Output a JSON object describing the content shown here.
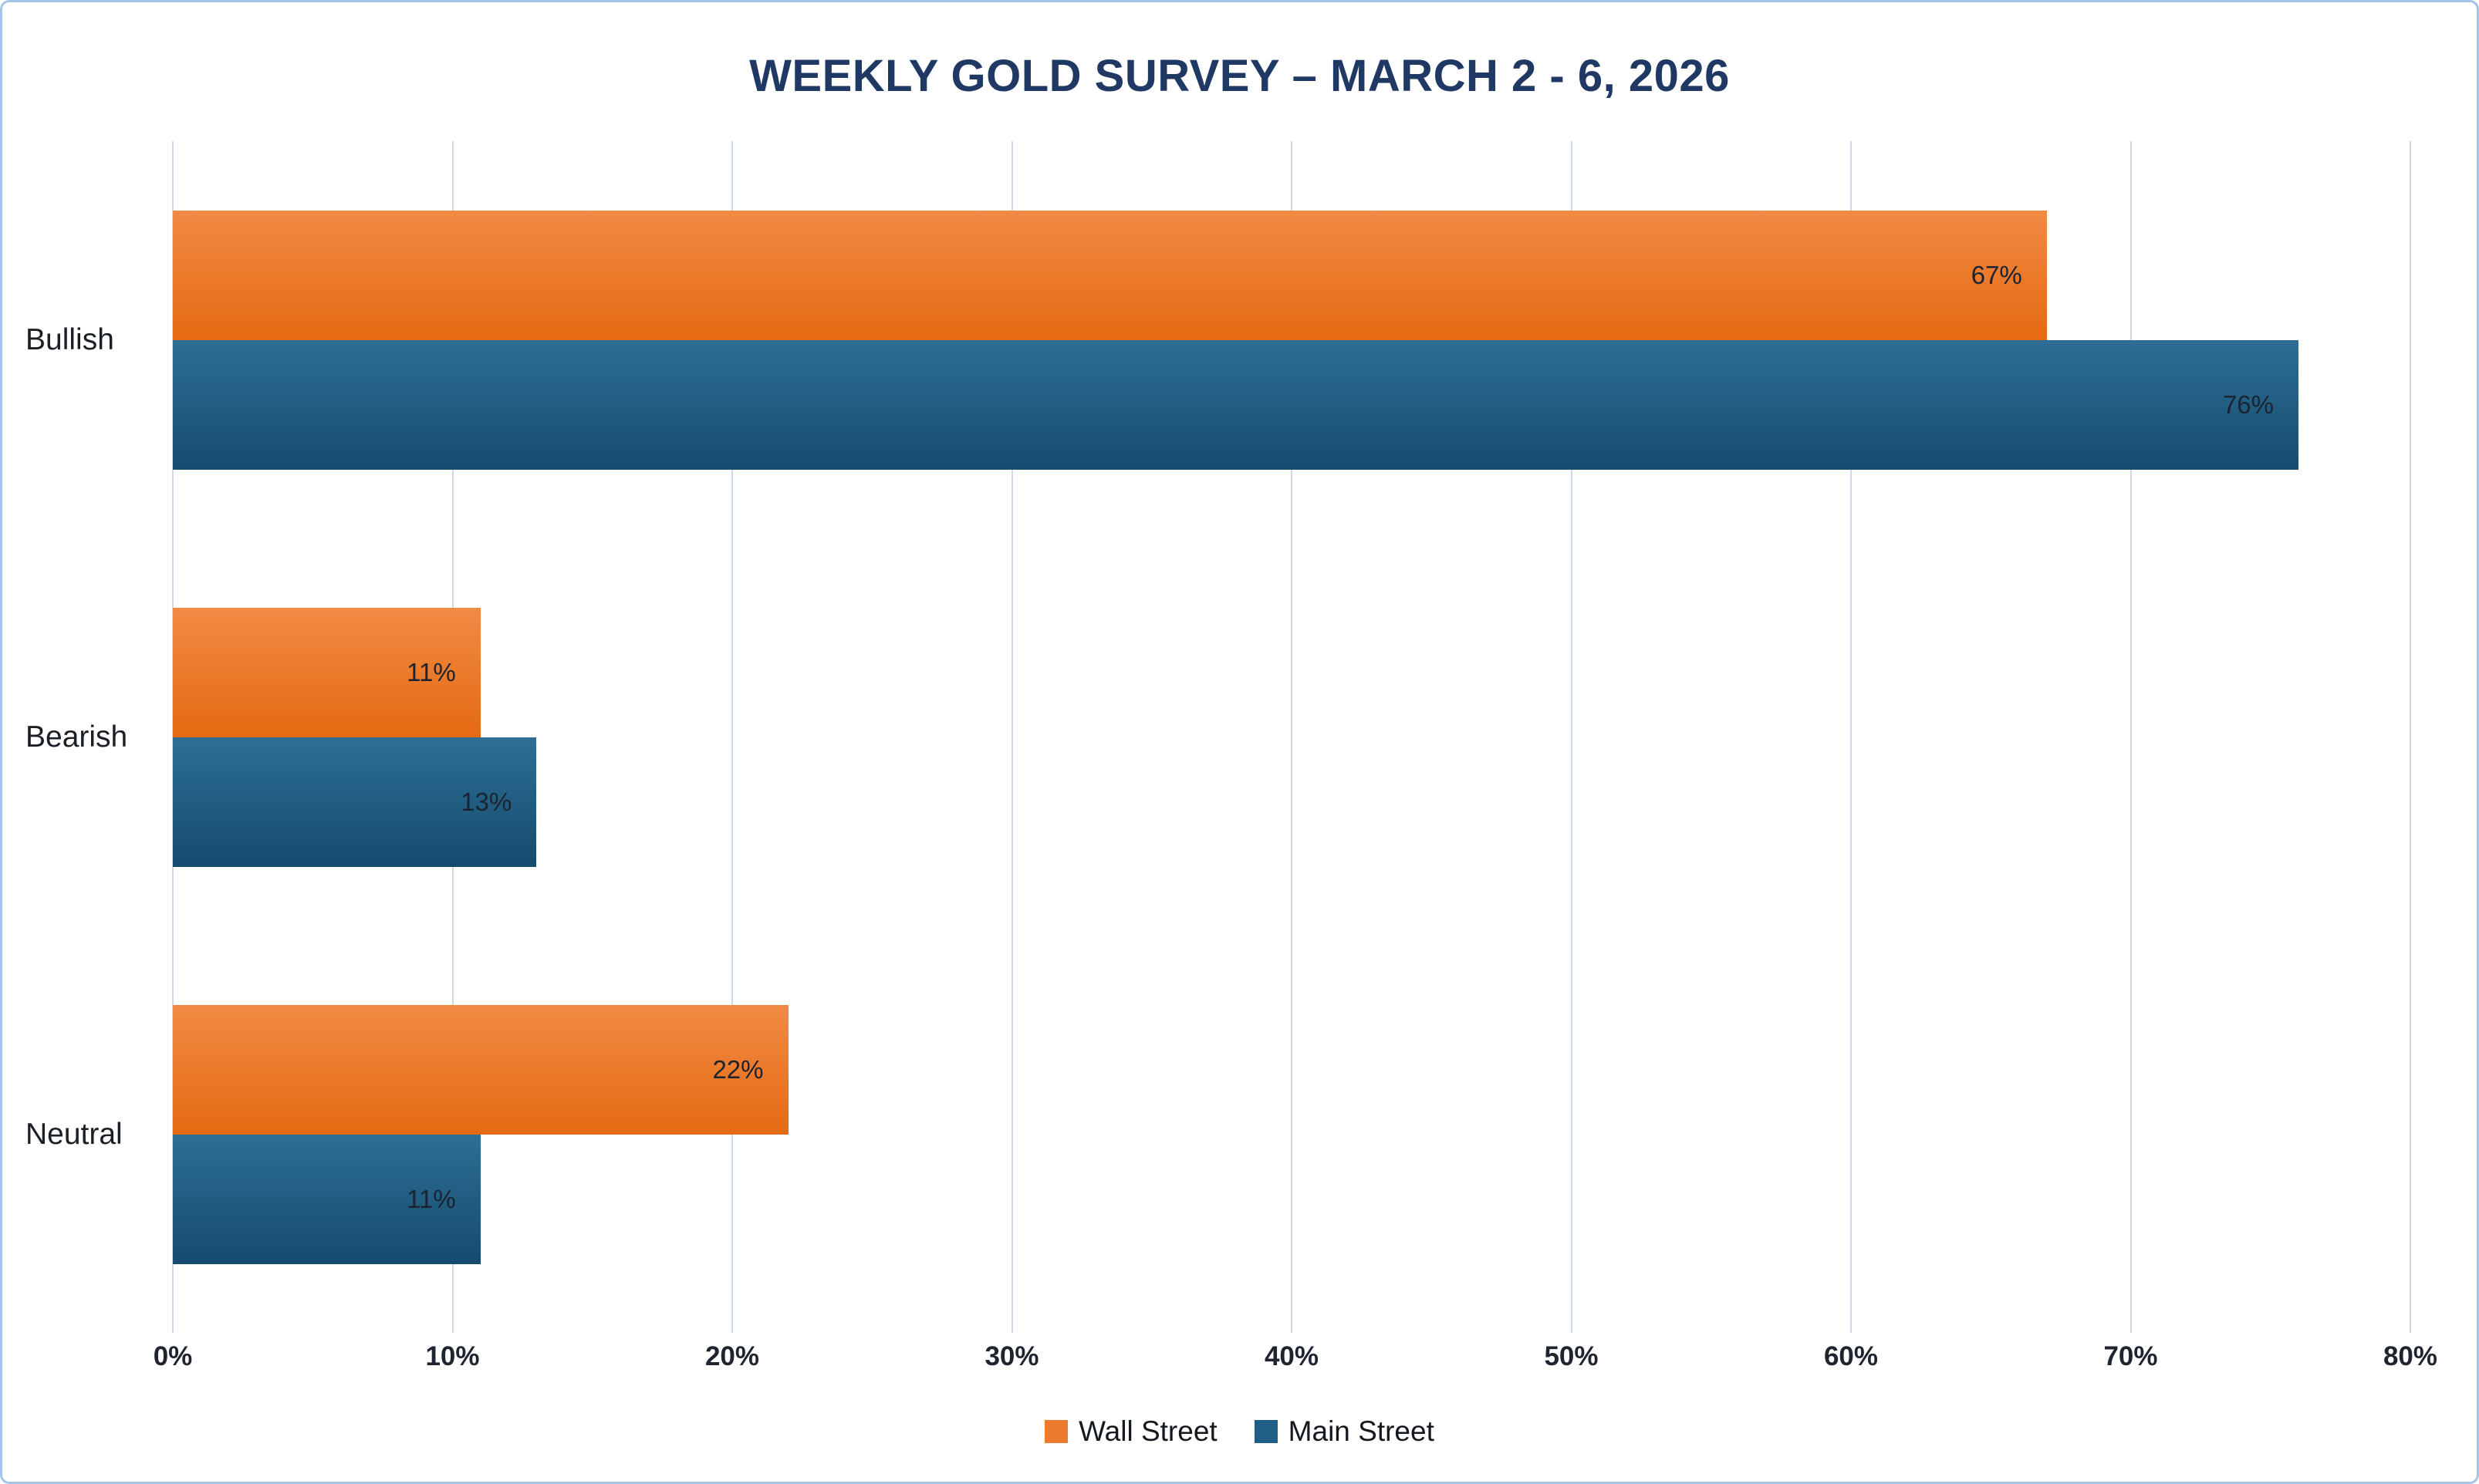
{
  "chart_data": {
    "type": "bar",
    "orientation": "horizontal",
    "title": "WEEKLY GOLD SURVEY – MARCH 2 - 6, 2026",
    "categories": [
      "Bullish",
      "Bearish",
      "Neutral"
    ],
    "series": [
      {
        "name": "Wall Street",
        "color": "#EC7A2F",
        "gradient_top": "#F28A44",
        "gradient_bottom": "#E56A12",
        "values": [
          67,
          11,
          22
        ]
      },
      {
        "name": "Main Street",
        "color": "#1F5F86",
        "gradient_top": "#2E6E95",
        "gradient_bottom": "#154B6E",
        "values": [
          76,
          13,
          11
        ]
      }
    ],
    "data_label_format": "{value}%",
    "xlim": [
      0,
      80
    ],
    "x_tick_step": 10,
    "x_tick_labels": [
      "0%",
      "10%",
      "20%",
      "30%",
      "40%",
      "50%",
      "60%",
      "70%",
      "80%"
    ],
    "grid": true,
    "legend_position": "bottom",
    "colors": {
      "frame_border": "#A6C3E8",
      "gridline": "#CBD8EC",
      "title_text": "#1F3864",
      "tick_text": "#1E2430",
      "bar_label_text": "#1B2330"
    }
  }
}
